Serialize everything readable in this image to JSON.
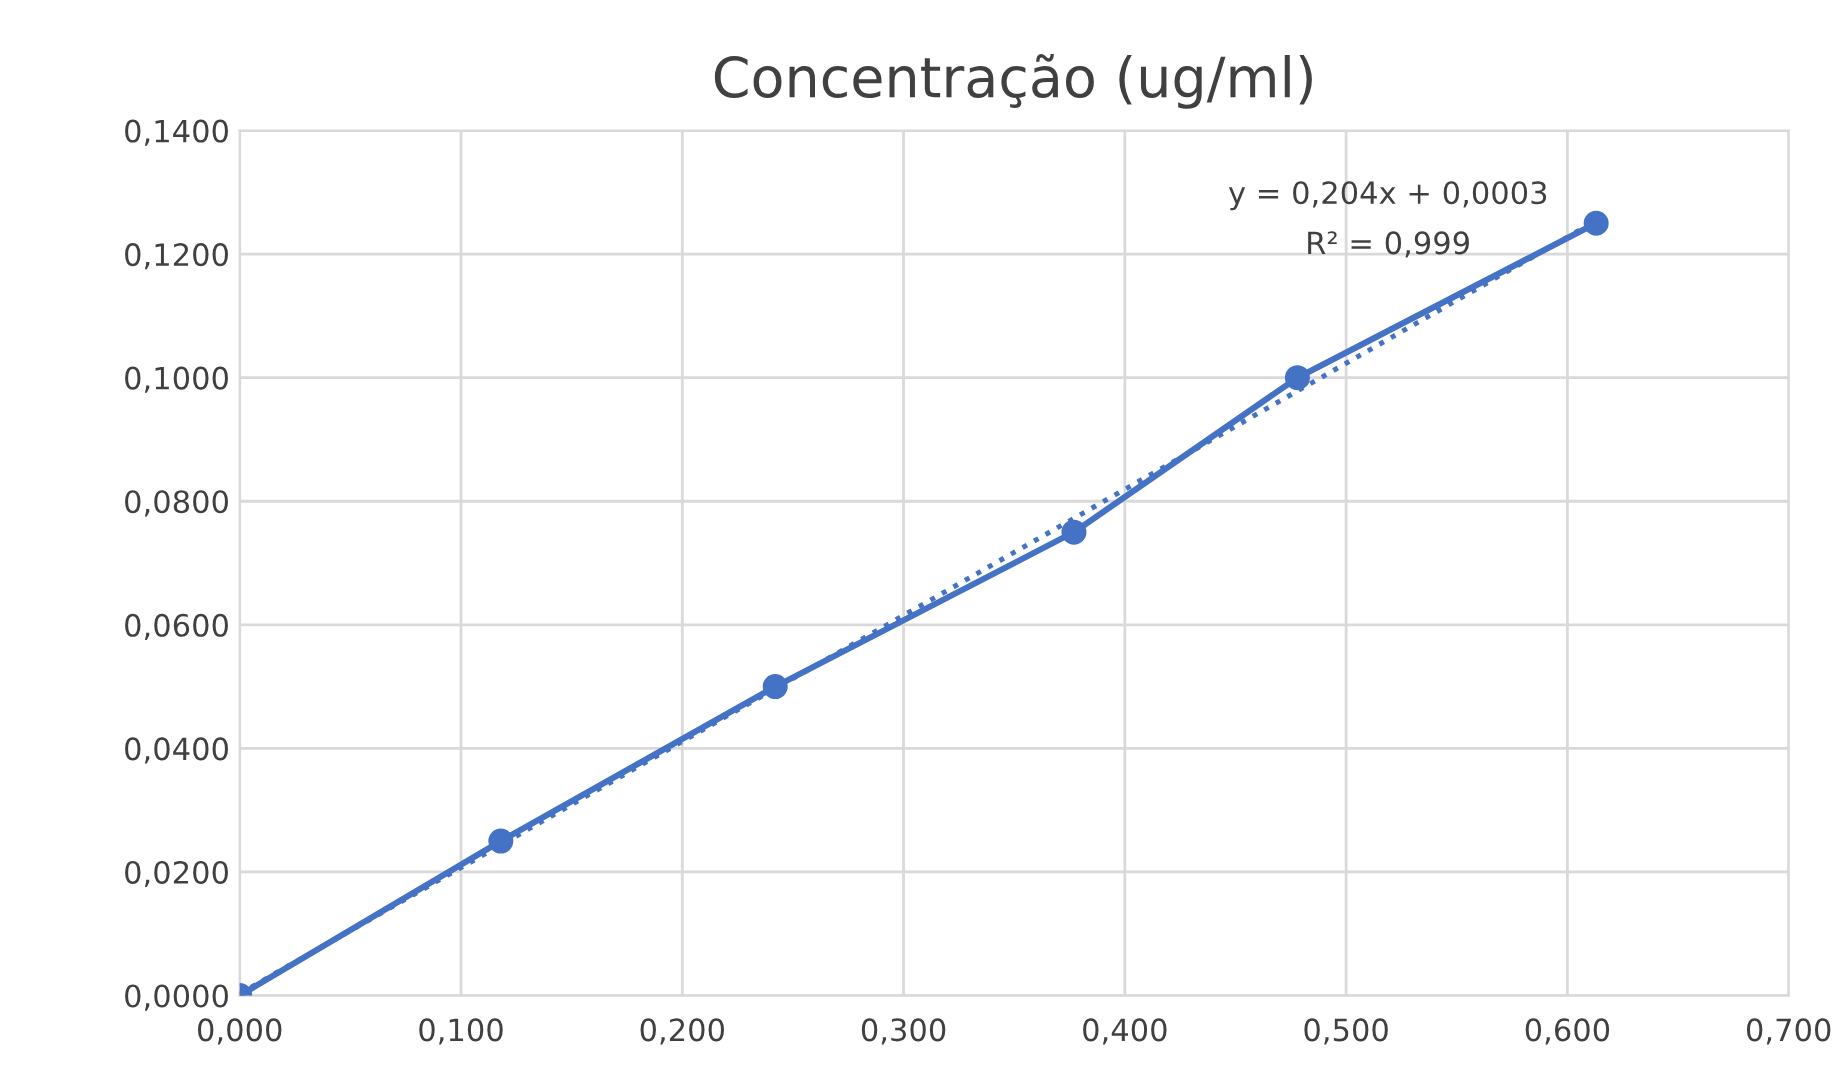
{
  "chart_data": {
    "type": "line",
    "title": "Concentração (ug/ml)",
    "series": [
      {
        "color": "#4472c4",
        "marker": "circle",
        "line_style": "solid",
        "x": [
          0,
          0.118,
          0.242,
          0.377,
          0.478,
          0.613
        ],
        "values": [
          0.0,
          0.025,
          0.05,
          0.075,
          0.1,
          0.125
        ]
      },
      {
        "color": "#4472c4",
        "marker": "none",
        "line_style": "dotted",
        "x": [
          0,
          0.613
        ],
        "values": [
          0.0003,
          0.1254
        ]
      }
    ],
    "xlim": [
      0,
      0.7
    ],
    "xticks": [
      {
        "value": 0,
        "label": "0,000"
      },
      {
        "value": 0.1,
        "label": "0,100"
      },
      {
        "value": 0.2,
        "label": "0,200"
      },
      {
        "value": 0.3,
        "label": "0,300"
      },
      {
        "value": 0.4,
        "label": "0,400"
      },
      {
        "value": 0.5,
        "label": "0,500"
      },
      {
        "value": 0.6,
        "label": "0,600"
      },
      {
        "value": 0.7,
        "label": "0,700"
      }
    ],
    "ylim": [
      0,
      0.14
    ],
    "yticks": [
      {
        "value": 0,
        "label": "0,0000"
      },
      {
        "value": 0.02,
        "label": "0,0200"
      },
      {
        "value": 0.04,
        "label": "0,0400"
      },
      {
        "value": 0.06,
        "label": "0,0600"
      },
      {
        "value": 0.08,
        "label": "0,0800"
      },
      {
        "value": 0.1,
        "label": "0,1000"
      },
      {
        "value": 0.12,
        "label": "0,1200"
      },
      {
        "value": 0.14,
        "label": "0,1400"
      }
    ],
    "grid": true,
    "legend": false,
    "annotations": [
      "y = 0,204x + 0,0003",
      "R² = 0,999"
    ]
  }
}
